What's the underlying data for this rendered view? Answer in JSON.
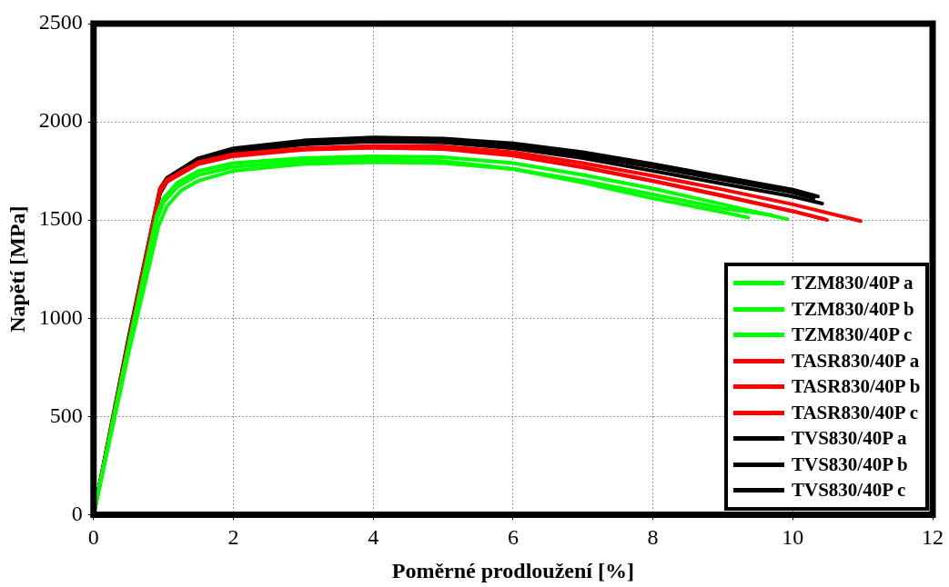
{
  "chart_data": {
    "type": "line",
    "xlabel": "Poměrné prodloužení [%]",
    "ylabel": "Napětí [MPa]",
    "xlim": [
      0,
      12
    ],
    "xticks": [
      0,
      2,
      4,
      6,
      8,
      10,
      12
    ],
    "ylim": [
      0,
      2500
    ],
    "yticks": [
      0,
      500,
      1000,
      1500,
      2000,
      2500
    ],
    "grid": true,
    "legend": "bottom right",
    "marker": "none",
    "line_style": "solid",
    "series": [
      {
        "name": "TZM830/40P a",
        "color": "#00ff00",
        "x": [
          0,
          0.5,
          0.9,
          1.0,
          1.2,
          1.5,
          2,
          3,
          4,
          5,
          6,
          7,
          8,
          9,
          9.36
        ],
        "values": [
          0,
          850,
          1500,
          1590,
          1670,
          1730,
          1770,
          1800,
          1810,
          1800,
          1760,
          1690,
          1610,
          1540,
          1513
        ]
      },
      {
        "name": "TZM830/40P b",
        "color": "#00ff00",
        "x": [
          0,
          0.5,
          0.9,
          1.0,
          1.2,
          1.5,
          2,
          3,
          4,
          5,
          6,
          7,
          8,
          9,
          9.92
        ],
        "values": [
          0,
          860,
          1520,
          1610,
          1690,
          1750,
          1790,
          1815,
          1825,
          1820,
          1790,
          1730,
          1660,
          1580,
          1505
        ]
      },
      {
        "name": "TZM830/40P c",
        "color": "#00ff00",
        "x": [
          0,
          0.5,
          0.93,
          1.05,
          1.25,
          1.5,
          2,
          3,
          4,
          5,
          6,
          7,
          8,
          9,
          9.7
        ],
        "values": [
          0,
          820,
          1470,
          1570,
          1650,
          1700,
          1750,
          1785,
          1795,
          1790,
          1760,
          1700,
          1630,
          1560,
          1525
        ]
      },
      {
        "name": "TASR830/40P a",
        "color": "#ff0000",
        "x": [
          0,
          0.5,
          0.95,
          1.05,
          1.5,
          2,
          3,
          4,
          5,
          6,
          7,
          8,
          9,
          10,
          10.49
        ],
        "values": [
          0,
          880,
          1650,
          1700,
          1790,
          1830,
          1860,
          1870,
          1865,
          1830,
          1770,
          1700,
          1625,
          1545,
          1500
        ]
      },
      {
        "name": "TASR830/40P b",
        "color": "#ff0000",
        "x": [
          0,
          0.5,
          0.95,
          1.05,
          1.5,
          2,
          3,
          4,
          5,
          6,
          7,
          8,
          9,
          10,
          10.97
        ],
        "values": [
          0,
          880,
          1660,
          1705,
          1795,
          1835,
          1865,
          1878,
          1875,
          1845,
          1790,
          1725,
          1655,
          1580,
          1495
        ]
      },
      {
        "name": "TASR830/40P c",
        "color": "#ff0000",
        "x": [
          0,
          0.5,
          0.95,
          1.05,
          1.5,
          2,
          3,
          4,
          5,
          6,
          7,
          8,
          9,
          10,
          10.45
        ],
        "values": [
          0,
          875,
          1645,
          1695,
          1785,
          1825,
          1858,
          1868,
          1862,
          1828,
          1768,
          1698,
          1622,
          1545,
          1505
        ]
      },
      {
        "name": "TVS830/40P a",
        "color": "#000000",
        "x": [
          0,
          0.5,
          0.95,
          1.05,
          1.5,
          2,
          3,
          4,
          5,
          6,
          7,
          8,
          9,
          10,
          10.36
        ],
        "values": [
          0,
          900,
          1660,
          1715,
          1815,
          1865,
          1905,
          1920,
          1915,
          1890,
          1845,
          1785,
          1720,
          1655,
          1620
        ]
      },
      {
        "name": "TVS830/40P b",
        "color": "#000000",
        "x": [
          0,
          0.5,
          0.95,
          1.05,
          1.5,
          2,
          3,
          4,
          5,
          6,
          7,
          8,
          9,
          10,
          10.42
        ],
        "values": [
          0,
          870,
          1640,
          1700,
          1795,
          1845,
          1885,
          1900,
          1895,
          1865,
          1815,
          1750,
          1685,
          1620,
          1584
        ]
      },
      {
        "name": "TVS830/40P c",
        "color": "#000000",
        "x": [
          0,
          0.5,
          0.95,
          1.05,
          1.5,
          2,
          3,
          4,
          5,
          6,
          7,
          8,
          9,
          10,
          10.3
        ],
        "values": [
          0,
          865,
          1635,
          1695,
          1800,
          1850,
          1892,
          1907,
          1903,
          1878,
          1830,
          1770,
          1705,
          1640,
          1612
        ]
      }
    ]
  }
}
